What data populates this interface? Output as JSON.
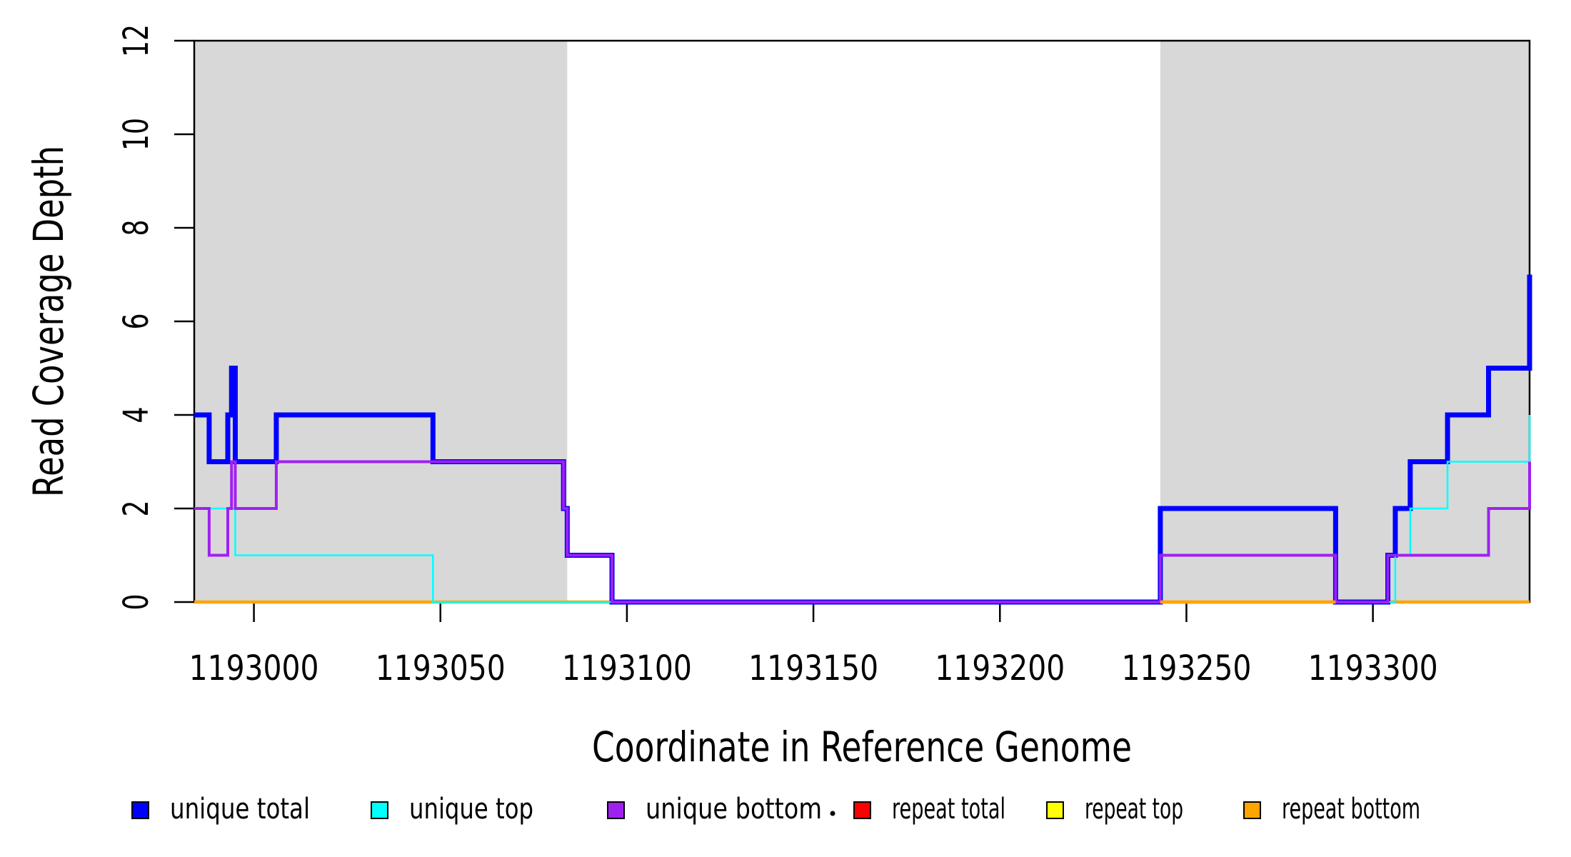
{
  "page": {
    "background": "#FFFFFF"
  },
  "chart_data": {
    "type": "line",
    "subtype": "step-coverage-plot",
    "title": "",
    "xlabel": "Coordinate in Reference Genome",
    "ylabel": "Read Coverage Depth",
    "grid": false,
    "legend_position": "bottom",
    "x_axis": {
      "min": 1192984,
      "max": 1193342,
      "tick_values": [
        1193000,
        1193050,
        1193100,
        1193150,
        1193200,
        1193250,
        1193300
      ],
      "tick_labels": [
        "1193000",
        "1193050",
        "1193100",
        "1193150",
        "1193200",
        "1193250",
        "1193300"
      ]
    },
    "y_axis": {
      "min": 0,
      "max": 12,
      "tick_values": [
        0,
        2,
        4,
        6,
        8,
        10,
        12
      ],
      "tick_labels": [
        "0",
        "2",
        "4",
        "6",
        "8",
        "10",
        "12"
      ]
    },
    "shade_color": "#D8D8D8",
    "shaded_regions": [
      {
        "from": 1192984,
        "to": 1193084
      },
      {
        "from": 1193243,
        "to": 1193342
      }
    ],
    "series": [
      {
        "name": "unique total",
        "color": "#0000FF",
        "line_width": 7,
        "points": [
          [
            1192984,
            4
          ],
          [
            1192988,
            3
          ],
          [
            1192993,
            4
          ],
          [
            1192994,
            5
          ],
          [
            1192995,
            3
          ],
          [
            1193006,
            4
          ],
          [
            1193048,
            3
          ],
          [
            1193083,
            2
          ],
          [
            1193084,
            1
          ],
          [
            1193096,
            0
          ],
          [
            1193243,
            2
          ],
          [
            1193290,
            0
          ],
          [
            1193304,
            1
          ],
          [
            1193306,
            2
          ],
          [
            1193310,
            3
          ],
          [
            1193320,
            4
          ],
          [
            1193331,
            5
          ],
          [
            1193342,
            7
          ]
        ]
      },
      {
        "name": "unique top",
        "color": "#00FFFF",
        "line_width": 2.5,
        "points": [
          [
            1192984,
            2
          ],
          [
            1192995,
            1
          ],
          [
            1193048,
            0
          ],
          [
            1193306,
            1
          ],
          [
            1193310,
            2
          ],
          [
            1193320,
            3
          ],
          [
            1193342,
            4
          ]
        ]
      },
      {
        "name": "unique bottom",
        "color": "#A020F0",
        "line_width": 4,
        "points": [
          [
            1192984,
            2
          ],
          [
            1192988,
            1
          ],
          [
            1192993,
            2
          ],
          [
            1192994,
            3
          ],
          [
            1192995,
            2
          ],
          [
            1193006,
            3
          ],
          [
            1193083,
            2
          ],
          [
            1193084,
            1
          ],
          [
            1193096,
            0
          ],
          [
            1193243,
            1
          ],
          [
            1193290,
            0
          ],
          [
            1193304,
            1
          ],
          [
            1193331,
            2
          ],
          [
            1193342,
            3
          ]
        ]
      },
      {
        "name": "repeat total",
        "color": "#FF0000",
        "line_width": 3,
        "points": [
          [
            1192984,
            0
          ]
        ]
      },
      {
        "name": "repeat top",
        "color": "#FFFF00",
        "line_width": 3,
        "points": [
          [
            1192984,
            0
          ]
        ]
      },
      {
        "name": "repeat bottom",
        "color": "#FFA500",
        "line_width": 4.5,
        "points": [
          [
            1192984,
            0
          ]
        ]
      }
    ],
    "baseline_overlays": [
      {
        "from": 1193243,
        "to": 1193290,
        "color": "#FFA500"
      }
    ]
  },
  "legend": {
    "items": [
      {
        "label": "unique total",
        "color": "#0000FF"
      },
      {
        "label": "unique top",
        "color": "#00FFFF"
      },
      {
        "label": "unique bottom",
        "color": "#A020F0"
      },
      {
        "label": "repeat total",
        "color": "#FF0000"
      },
      {
        "label": "repeat top",
        "color": "#FFFF00"
      },
      {
        "label": "repeat bottom",
        "color": "#FFA500"
      }
    ],
    "stray_dot": {
      "present": true,
      "color": "#000000"
    }
  }
}
